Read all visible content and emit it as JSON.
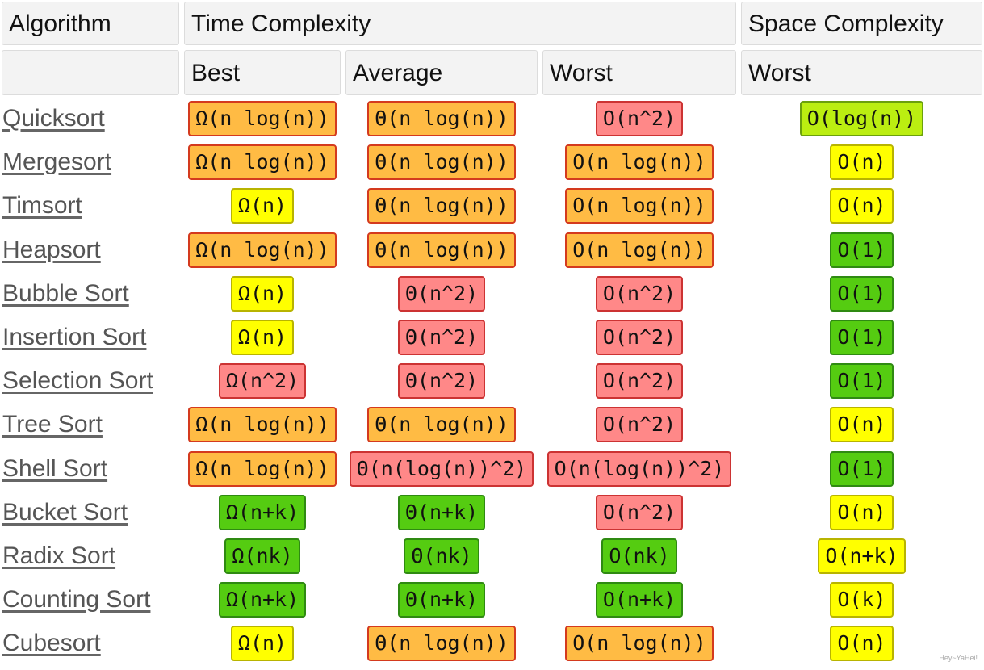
{
  "headers": {
    "algorithm": "Algorithm",
    "time_complexity": "Time Complexity",
    "space_complexity": "Space Complexity",
    "best": "Best",
    "average": "Average",
    "worst": "Worst",
    "space_worst": "Worst"
  },
  "rating_colors": {
    "orange": "#ffbb44",
    "red": "#ff8888",
    "yellow": "#ffff00",
    "green": "#55cc11",
    "lime": "#bbee11"
  },
  "rows": [
    {
      "name": "Quicksort",
      "best": {
        "text": "Ω(n log(n))",
        "rating": "orange"
      },
      "average": {
        "text": "Θ(n log(n))",
        "rating": "orange"
      },
      "worst": {
        "text": "O(n^2)",
        "rating": "red"
      },
      "space": {
        "text": "O(log(n))",
        "rating": "lime"
      }
    },
    {
      "name": "Mergesort",
      "best": {
        "text": "Ω(n log(n))",
        "rating": "orange"
      },
      "average": {
        "text": "Θ(n log(n))",
        "rating": "orange"
      },
      "worst": {
        "text": "O(n log(n))",
        "rating": "orange"
      },
      "space": {
        "text": "O(n)",
        "rating": "yellow"
      }
    },
    {
      "name": "Timsort",
      "best": {
        "text": "Ω(n)",
        "rating": "yellow"
      },
      "average": {
        "text": "Θ(n log(n))",
        "rating": "orange"
      },
      "worst": {
        "text": "O(n log(n))",
        "rating": "orange"
      },
      "space": {
        "text": "O(n)",
        "rating": "yellow"
      }
    },
    {
      "name": "Heapsort",
      "best": {
        "text": "Ω(n log(n))",
        "rating": "orange"
      },
      "average": {
        "text": "Θ(n log(n))",
        "rating": "orange"
      },
      "worst": {
        "text": "O(n log(n))",
        "rating": "orange"
      },
      "space": {
        "text": "O(1)",
        "rating": "green"
      }
    },
    {
      "name": "Bubble Sort",
      "best": {
        "text": "Ω(n)",
        "rating": "yellow"
      },
      "average": {
        "text": "Θ(n^2)",
        "rating": "red"
      },
      "worst": {
        "text": "O(n^2)",
        "rating": "red"
      },
      "space": {
        "text": "O(1)",
        "rating": "green"
      }
    },
    {
      "name": "Insertion Sort",
      "best": {
        "text": "Ω(n)",
        "rating": "yellow"
      },
      "average": {
        "text": "Θ(n^2)",
        "rating": "red"
      },
      "worst": {
        "text": "O(n^2)",
        "rating": "red"
      },
      "space": {
        "text": "O(1)",
        "rating": "green"
      }
    },
    {
      "name": "Selection Sort",
      "best": {
        "text": "Ω(n^2)",
        "rating": "red"
      },
      "average": {
        "text": "Θ(n^2)",
        "rating": "red"
      },
      "worst": {
        "text": "O(n^2)",
        "rating": "red"
      },
      "space": {
        "text": "O(1)",
        "rating": "green"
      }
    },
    {
      "name": "Tree Sort",
      "best": {
        "text": "Ω(n log(n))",
        "rating": "orange"
      },
      "average": {
        "text": "Θ(n log(n))",
        "rating": "orange"
      },
      "worst": {
        "text": "O(n^2)",
        "rating": "red"
      },
      "space": {
        "text": "O(n)",
        "rating": "yellow"
      }
    },
    {
      "name": "Shell Sort",
      "best": {
        "text": "Ω(n log(n))",
        "rating": "orange"
      },
      "average": {
        "text": "Θ(n(log(n))^2)",
        "rating": "red"
      },
      "worst": {
        "text": "O(n(log(n))^2)",
        "rating": "red"
      },
      "space": {
        "text": "O(1)",
        "rating": "green"
      }
    },
    {
      "name": "Bucket Sort",
      "best": {
        "text": "Ω(n+k)",
        "rating": "green"
      },
      "average": {
        "text": "Θ(n+k)",
        "rating": "green"
      },
      "worst": {
        "text": "O(n^2)",
        "rating": "red"
      },
      "space": {
        "text": "O(n)",
        "rating": "yellow"
      }
    },
    {
      "name": "Radix Sort",
      "best": {
        "text": "Ω(nk)",
        "rating": "green"
      },
      "average": {
        "text": "Θ(nk)",
        "rating": "green"
      },
      "worst": {
        "text": "O(nk)",
        "rating": "green"
      },
      "space": {
        "text": "O(n+k)",
        "rating": "yellow"
      }
    },
    {
      "name": "Counting Sort",
      "best": {
        "text": "Ω(n+k)",
        "rating": "green"
      },
      "average": {
        "text": "Θ(n+k)",
        "rating": "green"
      },
      "worst": {
        "text": "O(n+k)",
        "rating": "green"
      },
      "space": {
        "text": "O(k)",
        "rating": "yellow"
      }
    },
    {
      "name": "Cubesort",
      "best": {
        "text": "Ω(n)",
        "rating": "yellow"
      },
      "average": {
        "text": "Θ(n log(n))",
        "rating": "orange"
      },
      "worst": {
        "text": "O(n log(n))",
        "rating": "orange"
      },
      "space": {
        "text": "O(n)",
        "rating": "yellow"
      }
    }
  ],
  "watermark": "Hey~YaHei!"
}
